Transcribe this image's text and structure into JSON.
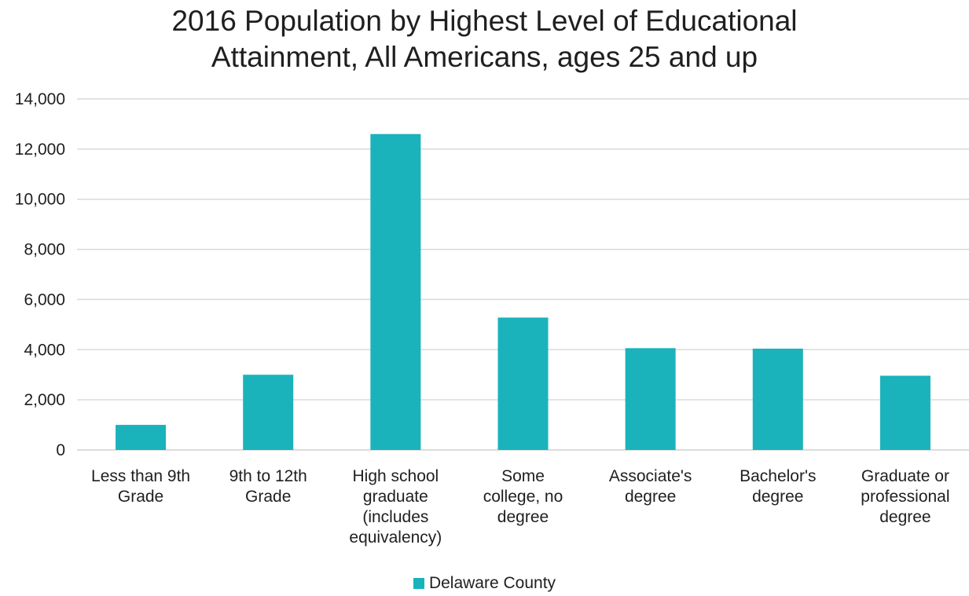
{
  "chart_data": {
    "type": "bar",
    "title_lines": [
      "2016 Population by Highest Level of Educational",
      "Attainment, All Americans, ages 25 and up"
    ],
    "categories": [
      [
        "Less than 9th",
        "Grade"
      ],
      [
        "9th to 12th",
        "Grade"
      ],
      [
        "High school",
        "graduate",
        "(includes",
        "equivalency)"
      ],
      [
        "Some",
        "college, no",
        "degree"
      ],
      [
        "Associate's",
        "degree"
      ],
      [
        "Bachelor's",
        "degree"
      ],
      [
        "Graduate or",
        "professional",
        "degree"
      ]
    ],
    "series": [
      {
        "name": "Delaware County",
        "color": "#1ab3bb",
        "values": [
          1000,
          3000,
          12600,
          5280,
          4060,
          4040,
          2960
        ]
      }
    ],
    "ylim": [
      0,
      14000
    ],
    "yticks": [
      0,
      2000,
      4000,
      6000,
      8000,
      10000,
      12000,
      14000
    ],
    "ytick_labels": [
      "0",
      "2,000",
      "4,000",
      "6,000",
      "8,000",
      "10,000",
      "12,000",
      "14,000"
    ],
    "grid": true,
    "legend_position": "bottom"
  }
}
